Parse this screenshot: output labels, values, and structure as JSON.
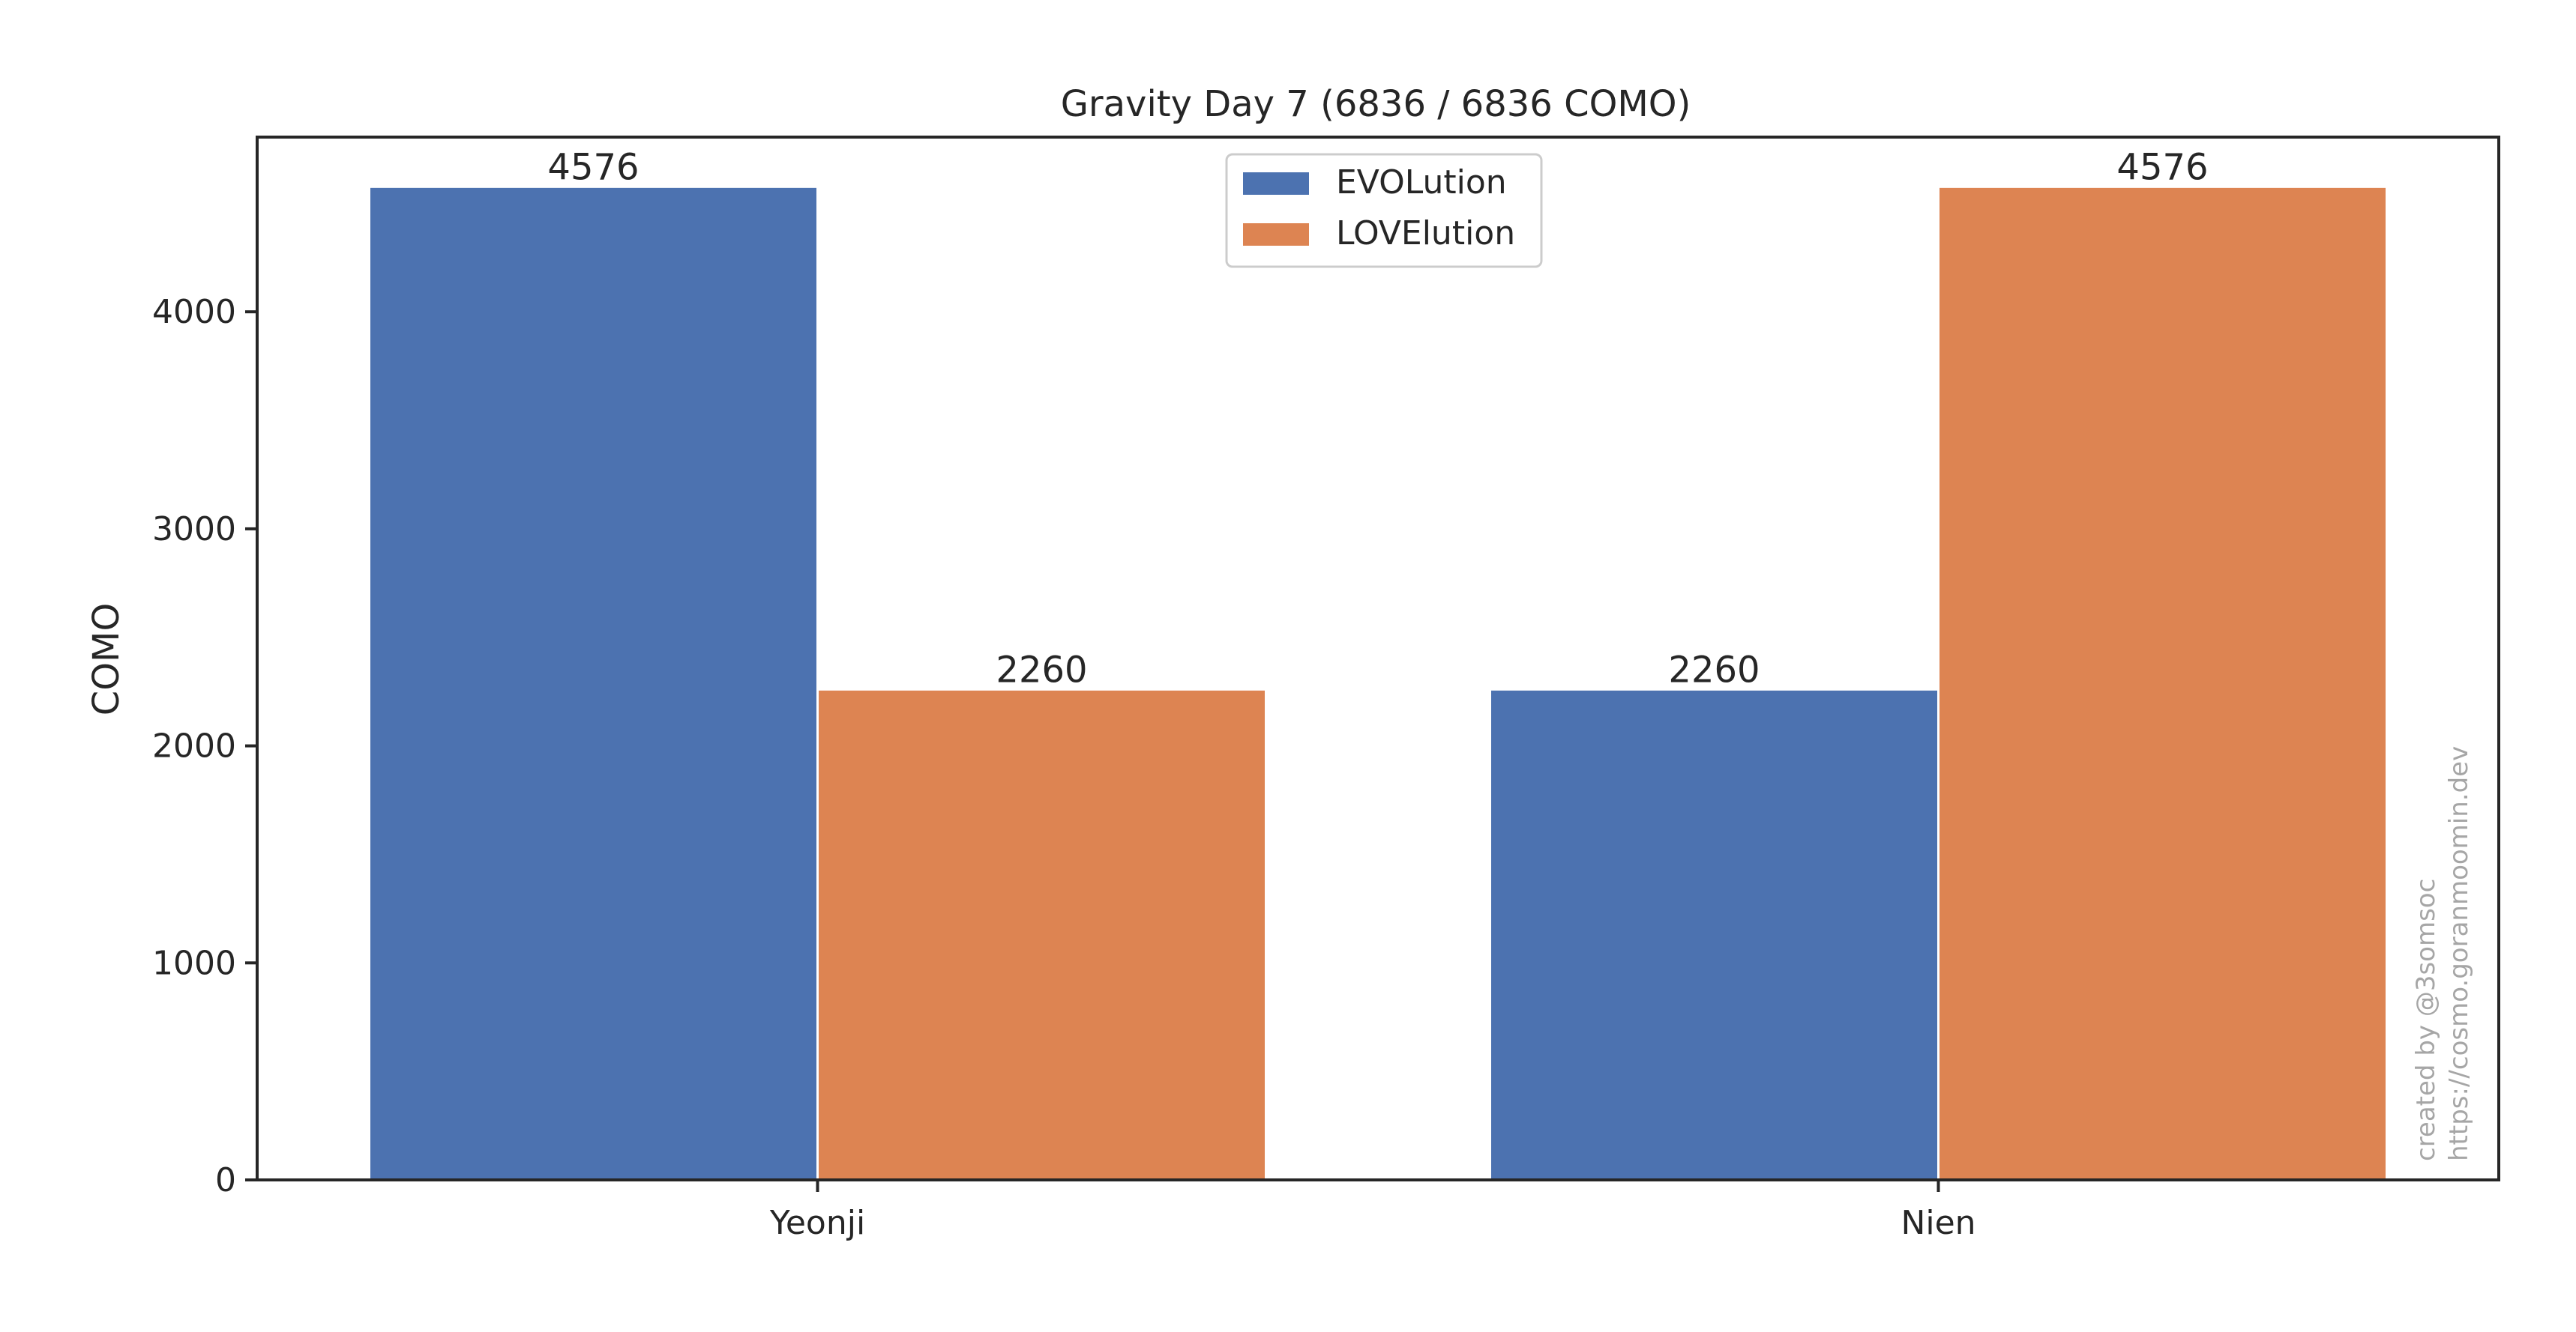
{
  "colors": {
    "EVOLution": "#4c72b0",
    "LOVElution": "#dd8452",
    "axis": "#262626",
    "watermark": "#a6a6a6"
  },
  "chart_data": {
    "type": "bar",
    "title": "Gravity Day 7 (6836 / 6836 COMO)",
    "xlabel": "",
    "ylabel": "COMO",
    "categories": [
      "Yeonji",
      "Nien"
    ],
    "series": [
      {
        "name": "EVOLution",
        "values": [
          4576,
          2260
        ]
      },
      {
        "name": "LOVElution",
        "values": [
          2260,
          4576
        ]
      }
    ],
    "ylim": [
      0,
      4805
    ],
    "yticks": [
      0,
      1000,
      2000,
      3000,
      4000
    ],
    "ytick_labels": [
      "0",
      "1000",
      "2000",
      "3000",
      "4000"
    ],
    "data_labels": [
      [
        "4576",
        "2260"
      ],
      [
        "2260",
        "4576"
      ]
    ],
    "legend": {
      "position": "upper center",
      "entries": [
        "EVOLution",
        "LOVElution"
      ]
    },
    "grid": false
  },
  "watermark": {
    "line1": "created by @3somsoc",
    "line2": "https://cosmo.goranmoomin.dev"
  }
}
